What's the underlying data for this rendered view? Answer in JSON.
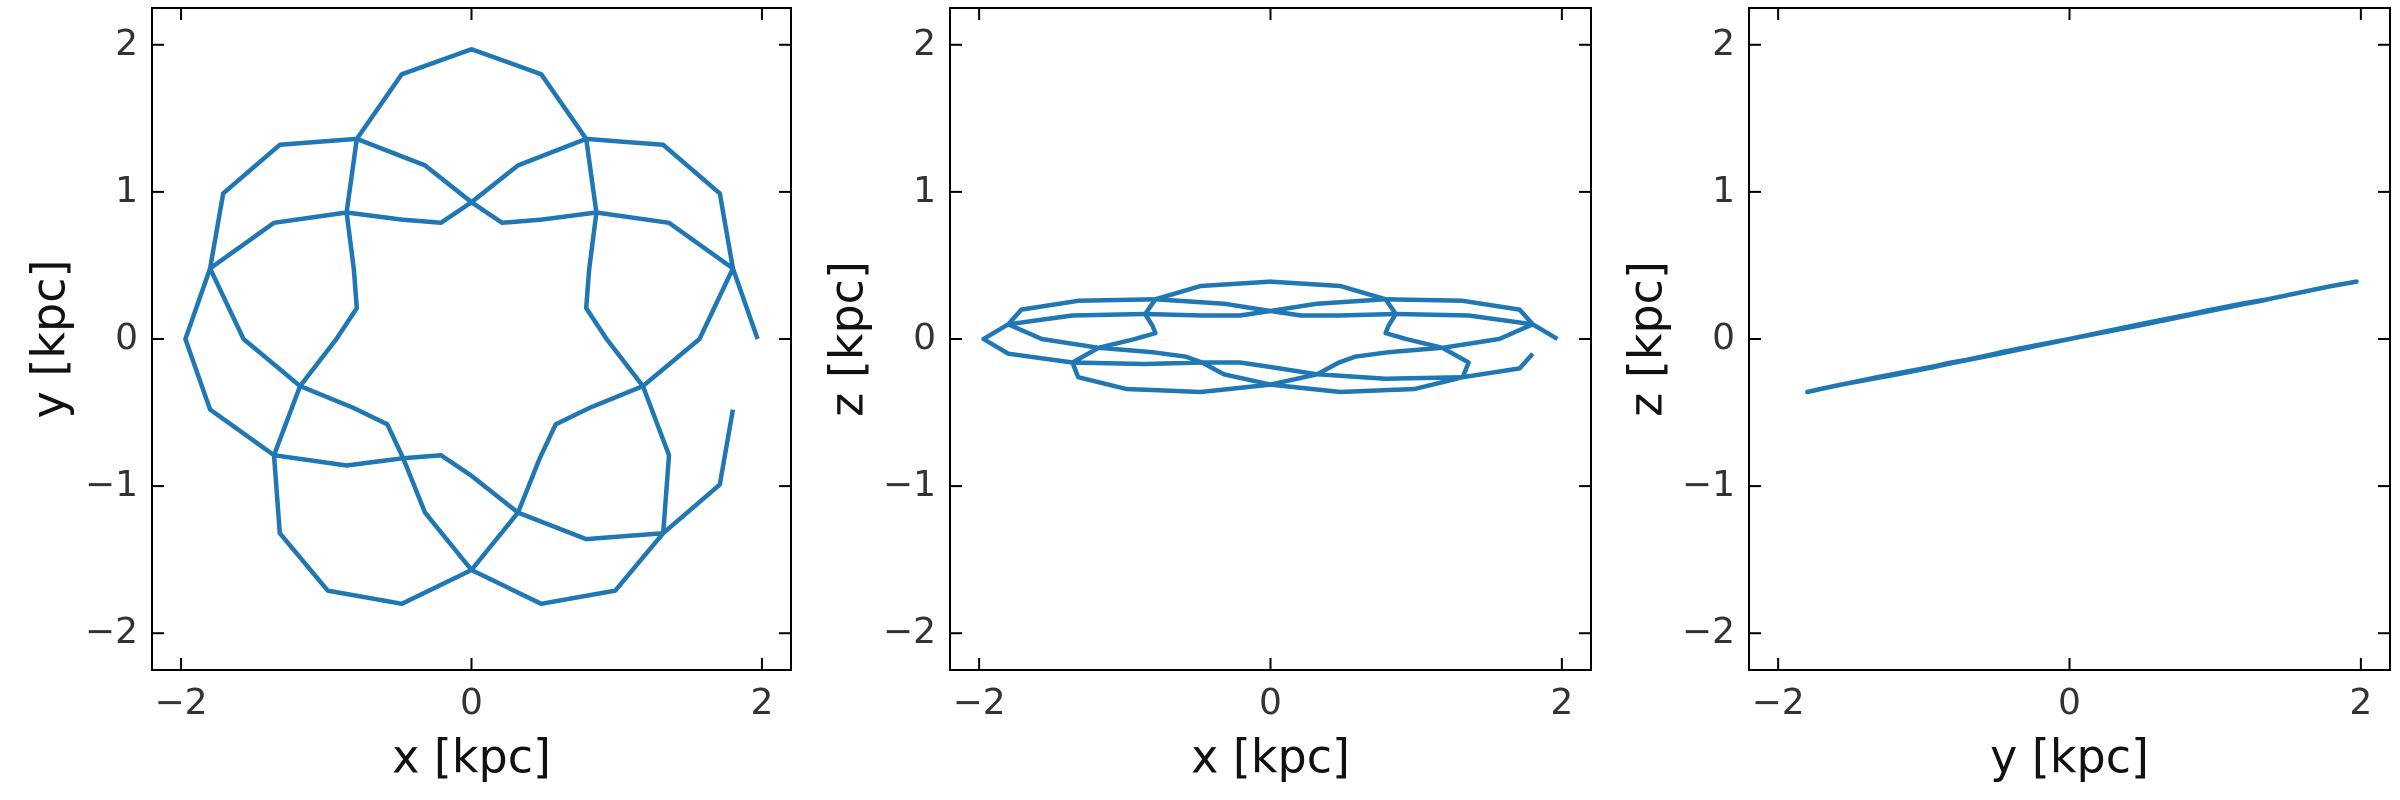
{
  "chart_data": [
    {
      "type": "line",
      "x_label": "x [kpc]",
      "y_label": "y [kpc]",
      "color": "#1f77b4",
      "xlim": [
        -2.2,
        2.2
      ],
      "ylim": [
        -2.25,
        2.25
      ],
      "xticks": [
        {
          "value": -2,
          "label": "−2"
        },
        0,
        2
      ],
      "yticks": [
        {
          "value": -2,
          "label": "−2"
        },
        {
          "value": -1,
          "label": "−1"
        },
        0,
        1,
        2
      ],
      "x": [
        1.97,
        1.8,
        1.36,
        0.86,
        0.47,
        0.21,
        0,
        -0.32,
        -0.79,
        -1.32,
        -1.71,
        -1.8,
        -1.57,
        -1.18,
        -0.81,
        -0.58,
        -0.47,
        -0.32,
        0,
        0.48,
        0.99,
        1.32,
        1.36,
        1.18,
        0.93,
        0.79,
        0.81,
        0.86,
        0.79,
        0.48,
        0,
        -0.48,
        -0.79,
        -0.86,
        -0.81,
        -0.79,
        -0.93,
        -1.18,
        -1.36,
        -1.32,
        -0.99,
        -0.48,
        0,
        0.32,
        0.47,
        0.58,
        0.81,
        1.18,
        1.57,
        1.8,
        1.71,
        1.32,
        0.79,
        0.32,
        0,
        -0.21,
        -0.47,
        -0.86,
        -1.36,
        -1.8,
        -1.97,
        -1.8,
        -1.36,
        -0.86,
        -0.47,
        -0.21,
        0,
        0.32,
        0.79,
        1.32,
        1.71,
        1.8
      ],
      "values": [
        0,
        0.48,
        0.79,
        0.86,
        0.81,
        0.79,
        0.93,
        1.18,
        1.36,
        1.32,
        0.99,
        0.48,
        0,
        -0.32,
        -0.47,
        -0.58,
        -0.81,
        -1.18,
        -1.57,
        -1.8,
        -1.71,
        -1.32,
        -0.79,
        -0.32,
        0,
        0.21,
        0.47,
        0.86,
        1.36,
        1.8,
        1.97,
        1.8,
        1.36,
        0.86,
        0.47,
        0.21,
        0,
        -0.32,
        -0.79,
        -1.32,
        -1.71,
        -1.8,
        -1.57,
        -1.18,
        -0.81,
        -0.58,
        -0.47,
        -0.32,
        0,
        0.48,
        0.99,
        1.32,
        1.36,
        1.18,
        0.93,
        0.79,
        0.81,
        0.86,
        0.79,
        0.48,
        0,
        -0.48,
        -0.79,
        -0.86,
        -0.81,
        -0.79,
        -0.93,
        -1.18,
        -1.36,
        -1.32,
        -0.99,
        -0.48
      ]
    },
    {
      "type": "line",
      "x_label": "x [kpc]",
      "y_label": "z [kpc]",
      "color": "#1f77b4",
      "xlim": [
        -2.2,
        2.2
      ],
      "ylim": [
        -2.25,
        2.25
      ],
      "xticks": [
        {
          "value": -2,
          "label": "−2"
        },
        0,
        2
      ],
      "yticks": [
        {
          "value": -2,
          "label": "−2"
        },
        {
          "value": -1,
          "label": "−1"
        },
        0,
        1,
        2
      ],
      "x": [
        1.97,
        1.8,
        1.36,
        0.86,
        0.47,
        0.21,
        0,
        -0.32,
        -0.79,
        -1.32,
        -1.71,
        -1.8,
        -1.57,
        -1.18,
        -0.81,
        -0.58,
        -0.47,
        -0.32,
        0,
        0.48,
        0.99,
        1.32,
        1.36,
        1.18,
        0.93,
        0.79,
        0.81,
        0.86,
        0.79,
        0.48,
        0,
        -0.48,
        -0.79,
        -0.86,
        -0.81,
        -0.79,
        -0.93,
        -1.18,
        -1.36,
        -1.32,
        -0.99,
        -0.48,
        0,
        0.32,
        0.47,
        0.58,
        0.81,
        1.18,
        1.57,
        1.8,
        1.71,
        1.32,
        0.79,
        0.32,
        0,
        -0.21,
        -0.47,
        -0.86,
        -1.36,
        -1.8,
        -1.97,
        -1.8,
        -1.36,
        -0.86,
        -0.47,
        -0.21,
        0,
        0.32,
        0.79,
        1.32,
        1.71,
        1.8
      ],
      "values": [
        0,
        0.1,
        0.16,
        0.17,
        0.16,
        0.16,
        0.19,
        0.24,
        0.27,
        0.26,
        0.2,
        0.1,
        0,
        -0.06,
        -0.09,
        -0.12,
        -0.16,
        -0.24,
        -0.31,
        -0.36,
        -0.34,
        -0.26,
        -0.16,
        -0.06,
        0,
        0.04,
        0.09,
        0.17,
        0.27,
        0.36,
        0.39,
        0.36,
        0.27,
        0.17,
        0.09,
        0.04,
        0,
        -0.06,
        -0.16,
        -0.26,
        -0.34,
        -0.36,
        -0.31,
        -0.24,
        -0.16,
        -0.12,
        -0.09,
        -0.06,
        0,
        0.1,
        0.2,
        0.26,
        0.27,
        0.24,
        0.19,
        0.16,
        0.16,
        0.17,
        0.16,
        0.1,
        0,
        -0.1,
        -0.16,
        -0.17,
        -0.16,
        -0.16,
        -0.19,
        -0.24,
        -0.27,
        -0.26,
        -0.2,
        -0.1
      ]
    },
    {
      "type": "line",
      "x_label": "y [kpc]",
      "y_label": "z [kpc]",
      "color": "#1f77b4",
      "xlim": [
        -2.2,
        2.2
      ],
      "ylim": [
        -2.25,
        2.25
      ],
      "xticks": [
        {
          "value": -2,
          "label": "−2"
        },
        0,
        2
      ],
      "yticks": [
        {
          "value": -2,
          "label": "−2"
        },
        {
          "value": -1,
          "label": "−1"
        },
        0,
        1,
        2
      ],
      "x": [
        0,
        0.48,
        0.79,
        0.86,
        0.81,
        0.79,
        0.93,
        1.18,
        1.36,
        1.32,
        0.99,
        0.48,
        0,
        -0.32,
        -0.47,
        -0.58,
        -0.81,
        -1.18,
        -1.57,
        -1.8,
        -1.71,
        -1.32,
        -0.79,
        -0.32,
        0,
        0.21,
        0.47,
        0.86,
        1.36,
        1.8,
        1.97,
        1.8,
        1.36,
        0.86,
        0.47,
        0.21,
        0,
        -0.32,
        -0.79,
        -1.32,
        -1.71,
        -1.8,
        -1.57,
        -1.18,
        -0.81,
        -0.58,
        -0.47,
        -0.32,
        0,
        0.48,
        0.99,
        1.32,
        1.36,
        1.18,
        0.93,
        0.79,
        0.81,
        0.86,
        0.79,
        0.48,
        0,
        -0.48,
        -0.79,
        -0.86,
        -0.81,
        -0.79,
        -0.93,
        -1.18,
        -1.36,
        -1.32,
        -0.99,
        -0.48
      ],
      "values": [
        0,
        0.1,
        0.16,
        0.17,
        0.16,
        0.16,
        0.19,
        0.24,
        0.27,
        0.26,
        0.2,
        0.1,
        0,
        -0.06,
        -0.09,
        -0.12,
        -0.16,
        -0.24,
        -0.31,
        -0.36,
        -0.34,
        -0.26,
        -0.16,
        -0.06,
        0,
        0.04,
        0.09,
        0.17,
        0.27,
        0.36,
        0.39,
        0.36,
        0.27,
        0.17,
        0.09,
        0.04,
        0,
        -0.06,
        -0.16,
        -0.26,
        -0.34,
        -0.36,
        -0.31,
        -0.24,
        -0.16,
        -0.12,
        -0.09,
        -0.06,
        0,
        0.1,
        0.2,
        0.26,
        0.27,
        0.24,
        0.19,
        0.16,
        0.16,
        0.17,
        0.16,
        0.1,
        0,
        -0.1,
        -0.16,
        -0.17,
        -0.16,
        -0.16,
        -0.19,
        -0.24,
        -0.27,
        -0.26,
        -0.2,
        -0.1
      ]
    }
  ]
}
